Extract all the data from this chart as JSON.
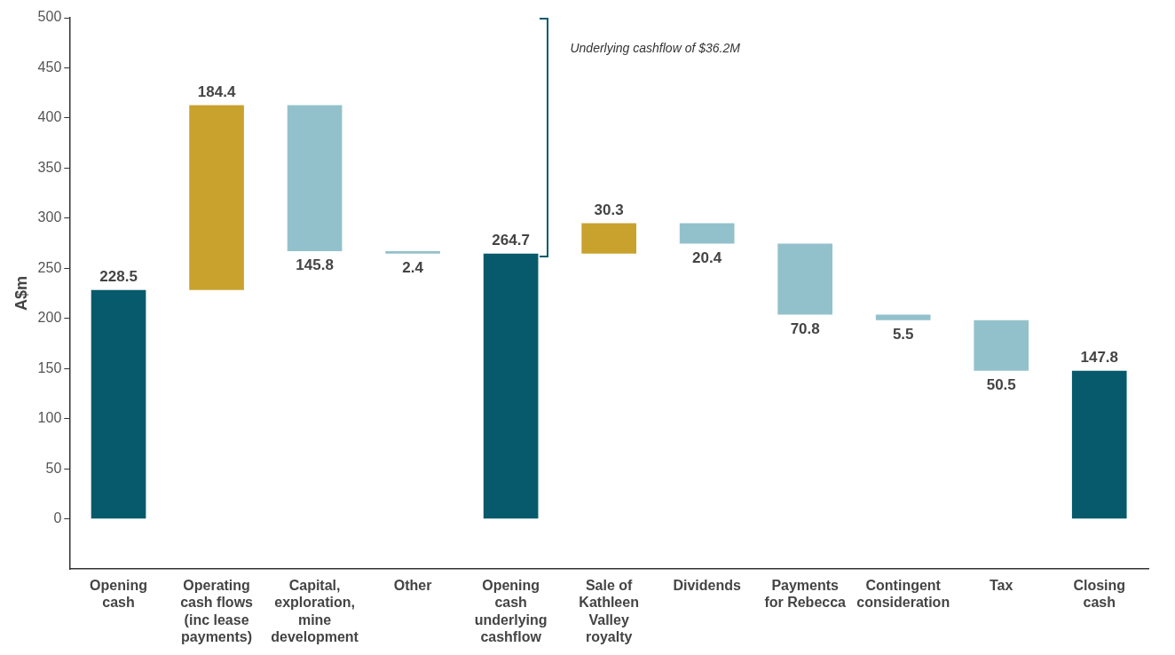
{
  "chart_data": {
    "type": "bar",
    "ylabel": "A$m",
    "categories": [
      "Opening cash",
      "Operating cash flows (inc lease payments)",
      "Capital, exploration, mine development",
      "Other",
      "Opening cash underlying cashflow",
      "Sale of Kathleen Valley royalty",
      "Dividends",
      "Payments for Rebecca",
      "Contingent consideration",
      "Tax",
      "Closing cash"
    ],
    "values": [
      228.5,
      184.4,
      145.8,
      2.4,
      264.7,
      30.3,
      20.4,
      70.8,
      5.5,
      50.5,
      147.8
    ],
    "base": [
      0,
      228.5,
      267.1,
      264.7,
      0,
      264.7,
      274.6,
      203.8,
      198.3,
      147.8,
      0
    ],
    "colors": [
      "#065a6b",
      "#c9a22e",
      "#93c1cb",
      "#93c1cb",
      "#065a6b",
      "#c9a22e",
      "#93c1cb",
      "#93c1cb",
      "#93c1cb",
      "#93c1cb",
      "#065a6b"
    ],
    "ylim": [
      -50,
      500
    ],
    "yticks": [
      0,
      50,
      100,
      150,
      200,
      250,
      300,
      350,
      400,
      450,
      500
    ],
    "grid": false,
    "legend": false,
    "data_labels": true,
    "annotations": [
      "Underlying cashflow of $36.2M"
    ]
  }
}
